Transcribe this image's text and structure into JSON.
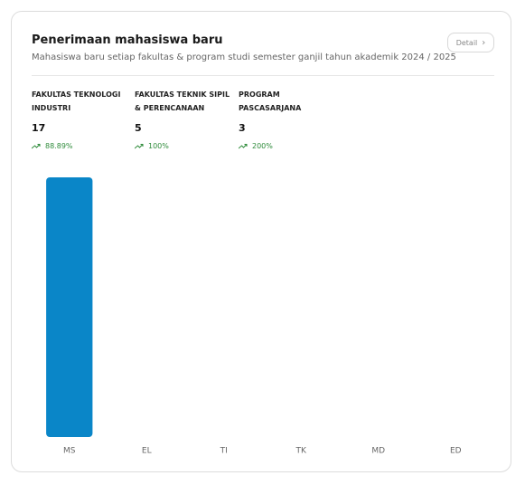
{
  "header": {
    "title": "Penerimaan mahasiswa baru",
    "subtitle": "Mahasiswa baru setiap fakultas & program studi semester ganjil tahun akademik 2024 / 2025",
    "button": "Detail"
  },
  "stats": [
    {
      "label": "FAKULTAS TEKNOLOGI INDUSTRI",
      "value": "17",
      "change": "88.89%"
    },
    {
      "label": "FAKULTAS TEKNIK SIPIL & PERENCANAAN",
      "value": "5",
      "change": "100%"
    },
    {
      "label": "PROGRAM PASCASARJANA",
      "value": "3",
      "change": "200%"
    }
  ],
  "chart_data": {
    "type": "bar",
    "categories": [
      "MS",
      "EL",
      "TI",
      "TK",
      "MD",
      "ED"
    ],
    "values": [
      1,
      0,
      0,
      0,
      0,
      0
    ],
    "color": "#0a86c8",
    "ylim": [
      0,
      1
    ]
  }
}
